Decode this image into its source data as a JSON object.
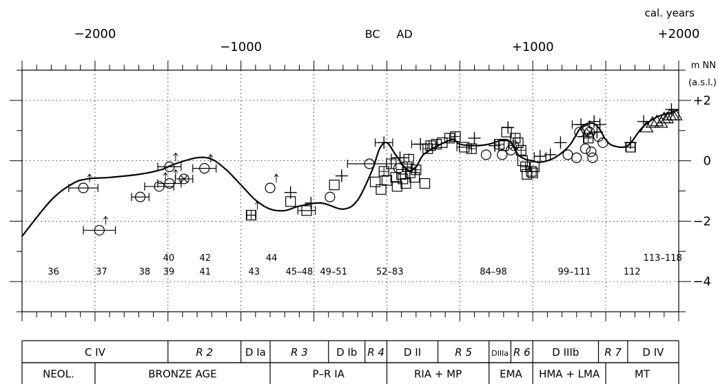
{
  "chart_data": {
    "type": "scatter",
    "title": "",
    "x_axis_unit": "cal. years",
    "x_range": [
      -2500,
      2000
    ],
    "x_ticks": [
      {
        "value": -2000,
        "label": "−2000",
        "row": "top"
      },
      {
        "value": -1000,
        "label": "−1000",
        "row": "low"
      },
      {
        "value": 0,
        "label_left": "BC",
        "label_right": "AD",
        "row": "top"
      },
      {
        "value": 1000,
        "label": "+1000",
        "row": "low"
      },
      {
        "value": 2000,
        "label": "+2000",
        "row": "top"
      }
    ],
    "y_axis_unit": [
      "m NN",
      "(a.s.l.)"
    ],
    "y_range": [
      -5,
      3
    ],
    "y_ticks": [
      {
        "value": 2,
        "label": "+2"
      },
      {
        "value": 0,
        "label": "0"
      },
      {
        "value": -2,
        "label": "−2"
      },
      {
        "value": -4,
        "label": "−4"
      }
    ],
    "grid": true,
    "curve": [
      [
        -2500,
        -2.5
      ],
      [
        -2300,
        -1.3
      ],
      [
        -2150,
        -0.75
      ],
      [
        -2050,
        -0.6
      ],
      [
        -1900,
        -0.55
      ],
      [
        -1700,
        -0.45
      ],
      [
        -1550,
        -0.3
      ],
      [
        -1450,
        -0.1
      ],
      [
        -1300,
        0.1
      ],
      [
        -1200,
        0.05
      ],
      [
        -1100,
        -0.3
      ],
      [
        -1000,
        -0.8
      ],
      [
        -900,
        -1.3
      ],
      [
        -800,
        -1.6
      ],
      [
        -700,
        -1.65
      ],
      [
        -600,
        -1.5
      ],
      [
        -450,
        -1.4
      ],
      [
        -300,
        -1.6
      ],
      [
        -200,
        -1.3
      ],
      [
        -100,
        -0.3
      ],
      [
        -50,
        0.4
      ],
      [
        0,
        0.6
      ],
      [
        60,
        0.2
      ],
      [
        140,
        -0.3
      ],
      [
        200,
        -0.2
      ],
      [
        250,
        0.2
      ],
      [
        350,
        0.5
      ],
      [
        450,
        0.7
      ],
      [
        500,
        0.55
      ],
      [
        600,
        0.5
      ],
      [
        700,
        0.55
      ],
      [
        800,
        0.7
      ],
      [
        850,
        0.6
      ],
      [
        900,
        0.2
      ],
      [
        950,
        0.05
      ],
      [
        1000,
        0
      ],
      [
        1050,
        -0.05
      ],
      [
        1150,
        0.1
      ],
      [
        1250,
        0.5
      ],
      [
        1330,
        1.1
      ],
      [
        1400,
        1.25
      ],
      [
        1450,
        1.1
      ],
      [
        1500,
        0.7
      ],
      [
        1550,
        0.5
      ],
      [
        1650,
        0.5
      ],
      [
        1750,
        1.1
      ],
      [
        1850,
        1.45
      ],
      [
        1950,
        1.6
      ],
      [
        2000,
        1.7
      ]
    ],
    "points": [
      {
        "x": -2080,
        "y": -0.9,
        "m": "circle",
        "xerr": 100,
        "arrow": true
      },
      {
        "x": -1970,
        "y": -2.3,
        "m": "circle",
        "xerr": 110,
        "arrow": true
      },
      {
        "x": -1690,
        "y": -1.2,
        "m": "circle",
        "xerr": 60
      },
      {
        "x": -1490,
        "y": -0.2,
        "m": "circle",
        "xerr": 80,
        "arrow": true
      },
      {
        "x": -1490,
        "y": -0.75,
        "m": "circle",
        "xerr": 80,
        "arrow": true
      },
      {
        "x": -1560,
        "y": -0.85,
        "m": "circle",
        "xerr": 100,
        "arrow": true
      },
      {
        "x": -1390,
        "y": -0.6,
        "m": "circle-x",
        "xerr": 60
      },
      {
        "x": -1250,
        "y": -0.25,
        "m": "circle",
        "xerr": 80,
        "arrow": true
      },
      {
        "x": -930,
        "y": -1.8,
        "m": "square-cross",
        "xerr": 30,
        "arrow": true
      },
      {
        "x": -800,
        "y": -0.9,
        "m": "circle",
        "arrow": true
      },
      {
        "x": -660,
        "y": -1.35,
        "m": "square"
      },
      {
        "x": -660,
        "y": -1.05,
        "m": "plus"
      },
      {
        "x": -550,
        "y": -1.65,
        "m": "square",
        "xerr": 60
      },
      {
        "x": -520,
        "y": -1.4,
        "m": "plus"
      },
      {
        "x": -390,
        "y": -1.2,
        "m": "circle"
      },
      {
        "x": -360,
        "y": -0.8,
        "m": "square"
      },
      {
        "x": -310,
        "y": -0.5,
        "m": "plus"
      },
      {
        "x": -120,
        "y": -0.1,
        "m": "circle",
        "xerr": 150
      },
      {
        "x": -20,
        "y": 0.6,
        "m": "plus",
        "xerr": 60
      },
      {
        "x": -80,
        "y": -0.7,
        "m": "square"
      },
      {
        "x": -40,
        "y": -0.95,
        "m": "square"
      },
      {
        "x": -20,
        "y": -0.35,
        "m": "square-cross"
      },
      {
        "x": 0,
        "y": -0.65,
        "m": "square"
      },
      {
        "x": 30,
        "y": -0.1,
        "m": "square-cross"
      },
      {
        "x": 60,
        "y": -0.55,
        "m": "square"
      },
      {
        "x": 70,
        "y": -0.85,
        "m": "square"
      },
      {
        "x": 80,
        "y": -0.25,
        "m": "circle"
      },
      {
        "x": 90,
        "y": 0.1,
        "m": "plus",
        "xerr": 60
      },
      {
        "x": 100,
        "y": -0.45,
        "m": "square"
      },
      {
        "x": 110,
        "y": -0.6,
        "m": "square"
      },
      {
        "x": 130,
        "y": -0.75,
        "m": "square"
      },
      {
        "x": 140,
        "y": -0.2,
        "m": "square-cross"
      },
      {
        "x": 150,
        "y": 0.05,
        "m": "square"
      },
      {
        "x": 160,
        "y": -0.4,
        "m": "square"
      },
      {
        "x": 190,
        "y": -0.55,
        "m": "square"
      },
      {
        "x": 200,
        "y": -0.3,
        "m": "square-cross"
      },
      {
        "x": 230,
        "y": 0.55,
        "m": "plus",
        "xerr": 60
      },
      {
        "x": 260,
        "y": -0.75,
        "m": "square"
      },
      {
        "x": 280,
        "y": 0.4,
        "m": "square-cross"
      },
      {
        "x": 300,
        "y": 0.5,
        "m": "square"
      },
      {
        "x": 340,
        "y": 0.55,
        "m": "square-cross"
      },
      {
        "x": 380,
        "y": 0.6,
        "m": "square"
      },
      {
        "x": 430,
        "y": 0.75,
        "m": "square-cross"
      },
      {
        "x": 470,
        "y": 0.8,
        "m": "square-cross"
      },
      {
        "x": 530,
        "y": 0.45,
        "m": "square",
        "xerr": 50
      },
      {
        "x": 580,
        "y": 0.4,
        "m": "square-cross"
      },
      {
        "x": 600,
        "y": 0.75,
        "m": "plus"
      },
      {
        "x": 680,
        "y": 0.2,
        "m": "circle"
      },
      {
        "x": 740,
        "y": 0.5,
        "m": "plus"
      },
      {
        "x": 770,
        "y": 0.55,
        "m": "square-cross"
      },
      {
        "x": 790,
        "y": 0.2,
        "m": "circle"
      },
      {
        "x": 800,
        "y": 0.5,
        "m": "square"
      },
      {
        "x": 820,
        "y": 0.95,
        "m": "square"
      },
      {
        "x": 830,
        "y": 1.1,
        "m": "plus"
      },
      {
        "x": 850,
        "y": 0.35,
        "m": "circle"
      },
      {
        "x": 870,
        "y": 0.5,
        "m": "circle-x"
      },
      {
        "x": 880,
        "y": 0.75,
        "m": "square-cross"
      },
      {
        "x": 900,
        "y": 0.6,
        "m": "square"
      },
      {
        "x": 920,
        "y": 0.35,
        "m": "square-cross"
      },
      {
        "x": 930,
        "y": 0.0,
        "m": "square"
      },
      {
        "x": 950,
        "y": -0.2,
        "m": "square-cross"
      },
      {
        "x": 960,
        "y": -0.45,
        "m": "square"
      },
      {
        "x": 990,
        "y": -0.35,
        "m": "square-cross"
      },
      {
        "x": 1000,
        "y": -0.4,
        "m": "square"
      },
      {
        "x": 1010,
        "y": -0.2,
        "m": "square"
      },
      {
        "x": 1050,
        "y": 0.15,
        "m": "plus",
        "xerr": 40
      },
      {
        "x": 1120,
        "y": 0.2,
        "m": "plus"
      },
      {
        "x": 1190,
        "y": 0.6,
        "m": "plus"
      },
      {
        "x": 1240,
        "y": 0.2,
        "m": "circle"
      },
      {
        "x": 1300,
        "y": 0.1,
        "m": "circle"
      },
      {
        "x": 1320,
        "y": 0.95,
        "m": "circle"
      },
      {
        "x": 1330,
        "y": 1.2,
        "m": "plus",
        "xerr": 60
      },
      {
        "x": 1350,
        "y": 0.8,
        "m": "plus"
      },
      {
        "x": 1360,
        "y": 0.4,
        "m": "circle"
      },
      {
        "x": 1370,
        "y": 1.0,
        "m": "circle"
      },
      {
        "x": 1380,
        "y": 0.75,
        "m": "square-cross"
      },
      {
        "x": 1390,
        "y": 0.95,
        "m": "circle-x"
      },
      {
        "x": 1400,
        "y": 0.3,
        "m": "circle"
      },
      {
        "x": 1410,
        "y": 0.1,
        "m": "circle"
      },
      {
        "x": 1420,
        "y": 1.3,
        "m": "plus"
      },
      {
        "x": 1440,
        "y": 0.95,
        "m": "plus"
      },
      {
        "x": 1450,
        "y": 0.8,
        "m": "circle"
      },
      {
        "x": 1460,
        "y": 1.2,
        "m": "plus"
      },
      {
        "x": 1480,
        "y": 0.6,
        "m": "circle"
      },
      {
        "x": 1670,
        "y": 0.45,
        "m": "square",
        "xerr": 30
      },
      {
        "x": 1670,
        "y": 0.6,
        "m": "plus"
      },
      {
        "x": 1760,
        "y": 1.3,
        "m": "plus"
      },
      {
        "x": 1780,
        "y": 1.1,
        "m": "triangle"
      },
      {
        "x": 1820,
        "y": 1.25,
        "m": "triangle"
      },
      {
        "x": 1850,
        "y": 1.3,
        "m": "triangle"
      },
      {
        "x": 1880,
        "y": 1.25,
        "m": "triangle"
      },
      {
        "x": 1900,
        "y": 1.4,
        "m": "triangle"
      },
      {
        "x": 1920,
        "y": 1.4,
        "m": "triangle"
      },
      {
        "x": 1940,
        "y": 1.5,
        "m": "triangle"
      },
      {
        "x": 1960,
        "y": 1.5,
        "m": "triangle"
      },
      {
        "x": 1980,
        "y": 1.5,
        "m": "triangle"
      },
      {
        "x": 1950,
        "y": 1.7,
        "m": "plus"
      }
    ],
    "annotations": [
      {
        "text": "36",
        "x": -2285,
        "y": -3.65
      },
      {
        "text": "37",
        "x": -1955,
        "y": -3.65
      },
      {
        "text": "38",
        "x": -1660,
        "y": -3.65
      },
      {
        "text": "40",
        "x": -1495,
        "y": -3.2
      },
      {
        "text": "39",
        "x": -1495,
        "y": -3.65
      },
      {
        "text": "42",
        "x": -1245,
        "y": -3.2
      },
      {
        "text": "41",
        "x": -1245,
        "y": -3.65
      },
      {
        "text": "44",
        "x": -790,
        "y": -3.2
      },
      {
        "text": "43",
        "x": -910,
        "y": -3.65
      },
      {
        "text": "45–48",
        "x": -600,
        "y": -3.65
      },
      {
        "text": "49–51",
        "x": -365,
        "y": -3.65
      },
      {
        "text": "52–83",
        "x": 20,
        "y": -3.65
      },
      {
        "text": "84–98",
        "x": 730,
        "y": -3.65
      },
      {
        "text": "99–111",
        "x": 1285,
        "y": -3.65
      },
      {
        "text": "112",
        "x": 1680,
        "y": -3.65
      },
      {
        "text": "113–118",
        "x": 1890,
        "y": -3.2
      }
    ],
    "period_rows": [
      [
        {
          "label": "C IV",
          "from": -2500,
          "to": -1500,
          "italic": false
        },
        {
          "label": "R 2",
          "from": -1500,
          "to": -1000,
          "italic": true
        },
        {
          "label": "D Ia",
          "from": -1000,
          "to": -800,
          "italic": false
        },
        {
          "label": "R 3",
          "from": -800,
          "to": -400,
          "italic": true
        },
        {
          "label": "D Ib",
          "from": -400,
          "to": -150,
          "italic": false
        },
        {
          "label": "R 4",
          "from": -150,
          "to": 0,
          "italic": true
        },
        {
          "label": "D II",
          "from": 0,
          "to": 350,
          "italic": false
        },
        {
          "label": "R 5",
          "from": 350,
          "to": 700,
          "italic": true
        },
        {
          "label": "DIIIa",
          "from": 700,
          "to": 850,
          "italic": false,
          "small": true
        },
        {
          "label": "R 6",
          "from": 850,
          "to": 1000,
          "italic": true
        },
        {
          "label": "D IIIb",
          "from": 1000,
          "to": 1450,
          "italic": false
        },
        {
          "label": "R 7",
          "from": 1450,
          "to": 1650,
          "italic": true
        },
        {
          "label": "D IV",
          "from": 1650,
          "to": 2000,
          "italic": false
        }
      ],
      [
        {
          "label": "NEOL.",
          "from": -2500,
          "to": -2000,
          "italic": false
        },
        {
          "label": "BRONZE AGE",
          "from": -2000,
          "to": -800,
          "italic": false
        },
        {
          "label": "P–R IA",
          "from": -800,
          "to": 0,
          "italic": false
        },
        {
          "label": "RIA + MP",
          "from": 0,
          "to": 700,
          "italic": false
        },
        {
          "label": "EMA",
          "from": 700,
          "to": 1000,
          "italic": false
        },
        {
          "label": "HMA + LMA",
          "from": 1000,
          "to": 1500,
          "italic": false
        },
        {
          "label": "MT",
          "from": 1500,
          "to": 2000,
          "italic": false
        }
      ]
    ]
  }
}
